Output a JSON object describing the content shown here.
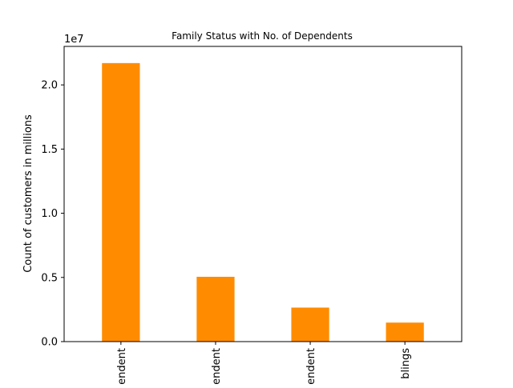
{
  "chart_data": {
    "type": "bar",
    "title": "Family Status with No. of Dependents",
    "xlabel": "",
    "ylabel": "Count of customers in millions",
    "y_offset_label": "1e7",
    "categories": [
      "dependent",
      "dependent",
      "dependent",
      "blings"
    ],
    "values": [
      21700000,
      5050000,
      2650000,
      1480000
    ],
    "ylim": [
      0,
      23000000
    ],
    "yticks": [
      0,
      5000000,
      10000000,
      15000000,
      20000000
    ],
    "ytick_labels": [
      "0.0",
      "0.5",
      "1.0",
      "1.5",
      "2.0"
    ],
    "bar_color": "#ff8c00",
    "grid": false,
    "legend": "none"
  }
}
